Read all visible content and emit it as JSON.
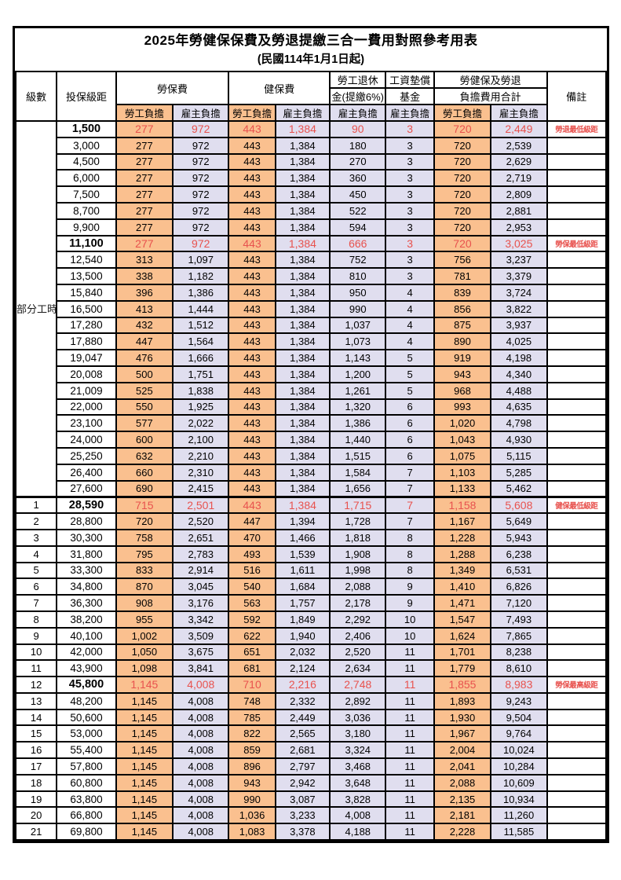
{
  "title": "2025年勞健保保費及勞退提繳三合一費用對照參考用表",
  "subtitle": "(民國114年1月1日起)",
  "colors": {
    "employee_col_bg": "#FAC08F",
    "employer_col_bg": "#E0DEEF",
    "highlight_text": "#E8524E",
    "border": "#000000"
  },
  "table": {
    "header": {
      "level": "級數",
      "bracket": "投保級距",
      "labor_ins": "勞保費",
      "health_ins": "健保費",
      "pension_line1": "勞工退休",
      "pension_line2": "金(提繳6%)",
      "wage_fund_line1": "工資墊償",
      "wage_fund_line2": "基金",
      "total_line1": "勞健保及勞退",
      "total_line2": "負擔費用合計",
      "remark": "備註",
      "employee_share": "勞工負擔",
      "employer_share": "雇主負擔"
    },
    "part_time_label": "部分工時",
    "part_time_rowspan": 23,
    "rows": [
      {
        "level": "",
        "bracket": "1,500",
        "labor_w": "277",
        "labor_e": "972",
        "health_w": "443",
        "health_e": "1,384",
        "pension_e": "90",
        "fund_e": "3",
        "total_w": "720",
        "total_e": "2,449",
        "note": "勞退最低級距",
        "hi": true
      },
      {
        "level": "",
        "bracket": "3,000",
        "labor_w": "277",
        "labor_e": "972",
        "health_w": "443",
        "health_e": "1,384",
        "pension_e": "180",
        "fund_e": "3",
        "total_w": "720",
        "total_e": "2,539",
        "note": "",
        "hi": false
      },
      {
        "level": "",
        "bracket": "4,500",
        "labor_w": "277",
        "labor_e": "972",
        "health_w": "443",
        "health_e": "1,384",
        "pension_e": "270",
        "fund_e": "3",
        "total_w": "720",
        "total_e": "2,629",
        "note": "",
        "hi": false
      },
      {
        "level": "",
        "bracket": "6,000",
        "labor_w": "277",
        "labor_e": "972",
        "health_w": "443",
        "health_e": "1,384",
        "pension_e": "360",
        "fund_e": "3",
        "total_w": "720",
        "total_e": "2,719",
        "note": "",
        "hi": false
      },
      {
        "level": "",
        "bracket": "7,500",
        "labor_w": "277",
        "labor_e": "972",
        "health_w": "443",
        "health_e": "1,384",
        "pension_e": "450",
        "fund_e": "3",
        "total_w": "720",
        "total_e": "2,809",
        "note": "",
        "hi": false
      },
      {
        "level": "",
        "bracket": "8,700",
        "labor_w": "277",
        "labor_e": "972",
        "health_w": "443",
        "health_e": "1,384",
        "pension_e": "522",
        "fund_e": "3",
        "total_w": "720",
        "total_e": "2,881",
        "note": "",
        "hi": false
      },
      {
        "level": "",
        "bracket": "9,900",
        "labor_w": "277",
        "labor_e": "972",
        "health_w": "443",
        "health_e": "1,384",
        "pension_e": "594",
        "fund_e": "3",
        "total_w": "720",
        "total_e": "2,953",
        "note": "",
        "hi": false
      },
      {
        "level": "",
        "bracket": "11,100",
        "labor_w": "277",
        "labor_e": "972",
        "health_w": "443",
        "health_e": "1,384",
        "pension_e": "666",
        "fund_e": "3",
        "total_w": "720",
        "total_e": "3,025",
        "note": "勞保最低級距",
        "hi": true
      },
      {
        "level": "",
        "bracket": "12,540",
        "labor_w": "313",
        "labor_e": "1,097",
        "health_w": "443",
        "health_e": "1,384",
        "pension_e": "752",
        "fund_e": "3",
        "total_w": "756",
        "total_e": "3,237",
        "note": "",
        "hi": false
      },
      {
        "level": "",
        "bracket": "13,500",
        "labor_w": "338",
        "labor_e": "1,182",
        "health_w": "443",
        "health_e": "1,384",
        "pension_e": "810",
        "fund_e": "3",
        "total_w": "781",
        "total_e": "3,379",
        "note": "",
        "hi": false
      },
      {
        "level": "",
        "bracket": "15,840",
        "labor_w": "396",
        "labor_e": "1,386",
        "health_w": "443",
        "health_e": "1,384",
        "pension_e": "950",
        "fund_e": "4",
        "total_w": "839",
        "total_e": "3,724",
        "note": "",
        "hi": false
      },
      {
        "level": "",
        "bracket": "16,500",
        "labor_w": "413",
        "labor_e": "1,444",
        "health_w": "443",
        "health_e": "1,384",
        "pension_e": "990",
        "fund_e": "4",
        "total_w": "856",
        "total_e": "3,822",
        "note": "",
        "hi": false
      },
      {
        "level": "",
        "bracket": "17,280",
        "labor_w": "432",
        "labor_e": "1,512",
        "health_w": "443",
        "health_e": "1,384",
        "pension_e": "1,037",
        "fund_e": "4",
        "total_w": "875",
        "total_e": "3,937",
        "note": "",
        "hi": false
      },
      {
        "level": "",
        "bracket": "17,880",
        "labor_w": "447",
        "labor_e": "1,564",
        "health_w": "443",
        "health_e": "1,384",
        "pension_e": "1,073",
        "fund_e": "4",
        "total_w": "890",
        "total_e": "4,025",
        "note": "",
        "hi": false
      },
      {
        "level": "",
        "bracket": "19,047",
        "labor_w": "476",
        "labor_e": "1,666",
        "health_w": "443",
        "health_e": "1,384",
        "pension_e": "1,143",
        "fund_e": "5",
        "total_w": "919",
        "total_e": "4,198",
        "note": "",
        "hi": false
      },
      {
        "level": "",
        "bracket": "20,008",
        "labor_w": "500",
        "labor_e": "1,751",
        "health_w": "443",
        "health_e": "1,384",
        "pension_e": "1,200",
        "fund_e": "5",
        "total_w": "943",
        "total_e": "4,340",
        "note": "",
        "hi": false
      },
      {
        "level": "",
        "bracket": "21,009",
        "labor_w": "525",
        "labor_e": "1,838",
        "health_w": "443",
        "health_e": "1,384",
        "pension_e": "1,261",
        "fund_e": "5",
        "total_w": "968",
        "total_e": "4,488",
        "note": "",
        "hi": false
      },
      {
        "level": "",
        "bracket": "22,000",
        "labor_w": "550",
        "labor_e": "1,925",
        "health_w": "443",
        "health_e": "1,384",
        "pension_e": "1,320",
        "fund_e": "6",
        "total_w": "993",
        "total_e": "4,635",
        "note": "",
        "hi": false
      },
      {
        "level": "",
        "bracket": "23,100",
        "labor_w": "577",
        "labor_e": "2,022",
        "health_w": "443",
        "health_e": "1,384",
        "pension_e": "1,386",
        "fund_e": "6",
        "total_w": "1,020",
        "total_e": "4,798",
        "note": "",
        "hi": false
      },
      {
        "level": "",
        "bracket": "24,000",
        "labor_w": "600",
        "labor_e": "2,100",
        "health_w": "443",
        "health_e": "1,384",
        "pension_e": "1,440",
        "fund_e": "6",
        "total_w": "1,043",
        "total_e": "4,930",
        "note": "",
        "hi": false
      },
      {
        "level": "",
        "bracket": "25,250",
        "labor_w": "632",
        "labor_e": "2,210",
        "health_w": "443",
        "health_e": "1,384",
        "pension_e": "1,515",
        "fund_e": "6",
        "total_w": "1,075",
        "total_e": "5,115",
        "note": "",
        "hi": false
      },
      {
        "level": "",
        "bracket": "26,400",
        "labor_w": "660",
        "labor_e": "2,310",
        "health_w": "443",
        "health_e": "1,384",
        "pension_e": "1,584",
        "fund_e": "7",
        "total_w": "1,103",
        "total_e": "5,285",
        "note": "",
        "hi": false
      },
      {
        "level": "",
        "bracket": "27,600",
        "labor_w": "690",
        "labor_e": "2,415",
        "health_w": "443",
        "health_e": "1,384",
        "pension_e": "1,656",
        "fund_e": "7",
        "total_w": "1,133",
        "total_e": "5,462",
        "note": "",
        "hi": false
      },
      {
        "level": "1",
        "bracket": "28,590",
        "labor_w": "715",
        "labor_e": "2,501",
        "health_w": "443",
        "health_e": "1,384",
        "pension_e": "1,715",
        "fund_e": "7",
        "total_w": "1,158",
        "total_e": "5,608",
        "note": "健保最低級距",
        "hi": true,
        "sep": true
      },
      {
        "level": "2",
        "bracket": "28,800",
        "labor_w": "720",
        "labor_e": "2,520",
        "health_w": "447",
        "health_e": "1,394",
        "pension_e": "1,728",
        "fund_e": "7",
        "total_w": "1,167",
        "total_e": "5,649",
        "note": "",
        "hi": false
      },
      {
        "level": "3",
        "bracket": "30,300",
        "labor_w": "758",
        "labor_e": "2,651",
        "health_w": "470",
        "health_e": "1,466",
        "pension_e": "1,818",
        "fund_e": "8",
        "total_w": "1,228",
        "total_e": "5,943",
        "note": "",
        "hi": false
      },
      {
        "level": "4",
        "bracket": "31,800",
        "labor_w": "795",
        "labor_e": "2,783",
        "health_w": "493",
        "health_e": "1,539",
        "pension_e": "1,908",
        "fund_e": "8",
        "total_w": "1,288",
        "total_e": "6,238",
        "note": "",
        "hi": false
      },
      {
        "level": "5",
        "bracket": "33,300",
        "labor_w": "833",
        "labor_e": "2,914",
        "health_w": "516",
        "health_e": "1,611",
        "pension_e": "1,998",
        "fund_e": "8",
        "total_w": "1,349",
        "total_e": "6,531",
        "note": "",
        "hi": false
      },
      {
        "level": "6",
        "bracket": "34,800",
        "labor_w": "870",
        "labor_e": "3,045",
        "health_w": "540",
        "health_e": "1,684",
        "pension_e": "2,088",
        "fund_e": "9",
        "total_w": "1,410",
        "total_e": "6,826",
        "note": "",
        "hi": false
      },
      {
        "level": "7",
        "bracket": "36,300",
        "labor_w": "908",
        "labor_e": "3,176",
        "health_w": "563",
        "health_e": "1,757",
        "pension_e": "2,178",
        "fund_e": "9",
        "total_w": "1,471",
        "total_e": "7,120",
        "note": "",
        "hi": false
      },
      {
        "level": "8",
        "bracket": "38,200",
        "labor_w": "955",
        "labor_e": "3,342",
        "health_w": "592",
        "health_e": "1,849",
        "pension_e": "2,292",
        "fund_e": "10",
        "total_w": "1,547",
        "total_e": "7,493",
        "note": "",
        "hi": false
      },
      {
        "level": "9",
        "bracket": "40,100",
        "labor_w": "1,002",
        "labor_e": "3,509",
        "health_w": "622",
        "health_e": "1,940",
        "pension_e": "2,406",
        "fund_e": "10",
        "total_w": "1,624",
        "total_e": "7,865",
        "note": "",
        "hi": false
      },
      {
        "level": "10",
        "bracket": "42,000",
        "labor_w": "1,050",
        "labor_e": "3,675",
        "health_w": "651",
        "health_e": "2,032",
        "pension_e": "2,520",
        "fund_e": "11",
        "total_w": "1,701",
        "total_e": "8,238",
        "note": "",
        "hi": false
      },
      {
        "level": "11",
        "bracket": "43,900",
        "labor_w": "1,098",
        "labor_e": "3,841",
        "health_w": "681",
        "health_e": "2,124",
        "pension_e": "2,634",
        "fund_e": "11",
        "total_w": "1,779",
        "total_e": "8,610",
        "note": "",
        "hi": false
      },
      {
        "level": "12",
        "bracket": "45,800",
        "labor_w": "1,145",
        "labor_e": "4,008",
        "health_w": "710",
        "health_e": "2,216",
        "pension_e": "2,748",
        "fund_e": "11",
        "total_w": "1,855",
        "total_e": "8,983",
        "note": "勞保最高級距",
        "hi": true
      },
      {
        "level": "13",
        "bracket": "48,200",
        "labor_w": "1,145",
        "labor_e": "4,008",
        "health_w": "748",
        "health_e": "2,332",
        "pension_e": "2,892",
        "fund_e": "11",
        "total_w": "1,893",
        "total_e": "9,243",
        "note": "",
        "hi": false
      },
      {
        "level": "14",
        "bracket": "50,600",
        "labor_w": "1,145",
        "labor_e": "4,008",
        "health_w": "785",
        "health_e": "2,449",
        "pension_e": "3,036",
        "fund_e": "11",
        "total_w": "1,930",
        "total_e": "9,504",
        "note": "",
        "hi": false
      },
      {
        "level": "15",
        "bracket": "53,000",
        "labor_w": "1,145",
        "labor_e": "4,008",
        "health_w": "822",
        "health_e": "2,565",
        "pension_e": "3,180",
        "fund_e": "11",
        "total_w": "1,967",
        "total_e": "9,764",
        "note": "",
        "hi": false
      },
      {
        "level": "16",
        "bracket": "55,400",
        "labor_w": "1,145",
        "labor_e": "4,008",
        "health_w": "859",
        "health_e": "2,681",
        "pension_e": "3,324",
        "fund_e": "11",
        "total_w": "2,004",
        "total_e": "10,024",
        "note": "",
        "hi": false
      },
      {
        "level": "17",
        "bracket": "57,800",
        "labor_w": "1,145",
        "labor_e": "4,008",
        "health_w": "896",
        "health_e": "2,797",
        "pension_e": "3,468",
        "fund_e": "11",
        "total_w": "2,041",
        "total_e": "10,284",
        "note": "",
        "hi": false
      },
      {
        "level": "18",
        "bracket": "60,800",
        "labor_w": "1,145",
        "labor_e": "4,008",
        "health_w": "943",
        "health_e": "2,942",
        "pension_e": "3,648",
        "fund_e": "11",
        "total_w": "2,088",
        "total_e": "10,609",
        "note": "",
        "hi": false
      },
      {
        "level": "19",
        "bracket": "63,800",
        "labor_w": "1,145",
        "labor_e": "4,008",
        "health_w": "990",
        "health_e": "3,087",
        "pension_e": "3,828",
        "fund_e": "11",
        "total_w": "2,135",
        "total_e": "10,934",
        "note": "",
        "hi": false
      },
      {
        "level": "20",
        "bracket": "66,800",
        "labor_w": "1,145",
        "labor_e": "4,008",
        "health_w": "1,036",
        "health_e": "3,233",
        "pension_e": "4,008",
        "fund_e": "11",
        "total_w": "2,181",
        "total_e": "11,260",
        "note": "",
        "hi": false
      },
      {
        "level": "21",
        "bracket": "69,800",
        "labor_w": "1,145",
        "labor_e": "4,008",
        "health_w": "1,083",
        "health_e": "3,378",
        "pension_e": "4,188",
        "fund_e": "11",
        "total_w": "2,228",
        "total_e": "11,585",
        "note": "",
        "hi": false
      }
    ]
  }
}
